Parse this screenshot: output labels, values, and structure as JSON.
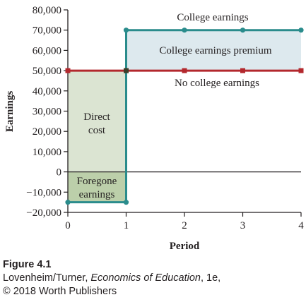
{
  "chart_data": {
    "type": "line",
    "ylabel": "Earnings",
    "xlabel": "Period",
    "xlim": [
      0,
      4
    ],
    "ylim": [
      -20000,
      80000
    ],
    "x_ticks": [
      0,
      1,
      2,
      3,
      4
    ],
    "x_tick_labels": [
      "0",
      "1",
      "2",
      "3",
      "4"
    ],
    "y_ticks": [
      -20000,
      -10000,
      0,
      10000,
      20000,
      30000,
      40000,
      50000,
      60000,
      70000,
      80000
    ],
    "y_tick_labels": [
      "−20,000",
      "−10,000",
      "0",
      "10,000",
      "20,000",
      "30,000",
      "40,000",
      "50,000",
      "60,000",
      "70,000",
      "80,000"
    ],
    "series": [
      {
        "name": "College earnings",
        "color": "#2a8c8c",
        "marker": "circle",
        "x": [
          0,
          1,
          1,
          2,
          3,
          4
        ],
        "y": [
          -15000,
          -15000,
          70000,
          70000,
          70000,
          70000
        ]
      },
      {
        "name": "No college earnings",
        "color": "#b3282d",
        "marker": "square",
        "x": [
          0,
          1,
          2,
          3,
          4
        ],
        "y": [
          50000,
          50000,
          50000,
          50000,
          50000
        ]
      }
    ],
    "regions": [
      {
        "label": "College earnings premium",
        "x": [
          1,
          4
        ],
        "y": [
          50000,
          70000
        ],
        "color": "#dde9ee"
      },
      {
        "label": "Direct cost",
        "x": [
          0,
          1
        ],
        "y": [
          0,
          50000
        ],
        "color": "#dbe4d2"
      },
      {
        "label": "Foregone earnings",
        "x": [
          0,
          1
        ],
        "y": [
          -15000,
          0
        ],
        "color": "#bccfaa"
      }
    ],
    "annotations": {
      "college_label": "College earnings",
      "premium_label": "College earnings premium",
      "no_college_label": "No college earnings",
      "direct_cost_line1": "Direct",
      "direct_cost_line2": "cost",
      "foregone_line1": "Foregone",
      "foregone_line2": "earnings"
    }
  },
  "caption": {
    "figure_label": "Figure 4.1",
    "authors": "Lovenheim/Turner, ",
    "book_title": "Economics of Education",
    "edition": ", 1e,",
    "copyright": "© 2018 Worth Publishers"
  }
}
